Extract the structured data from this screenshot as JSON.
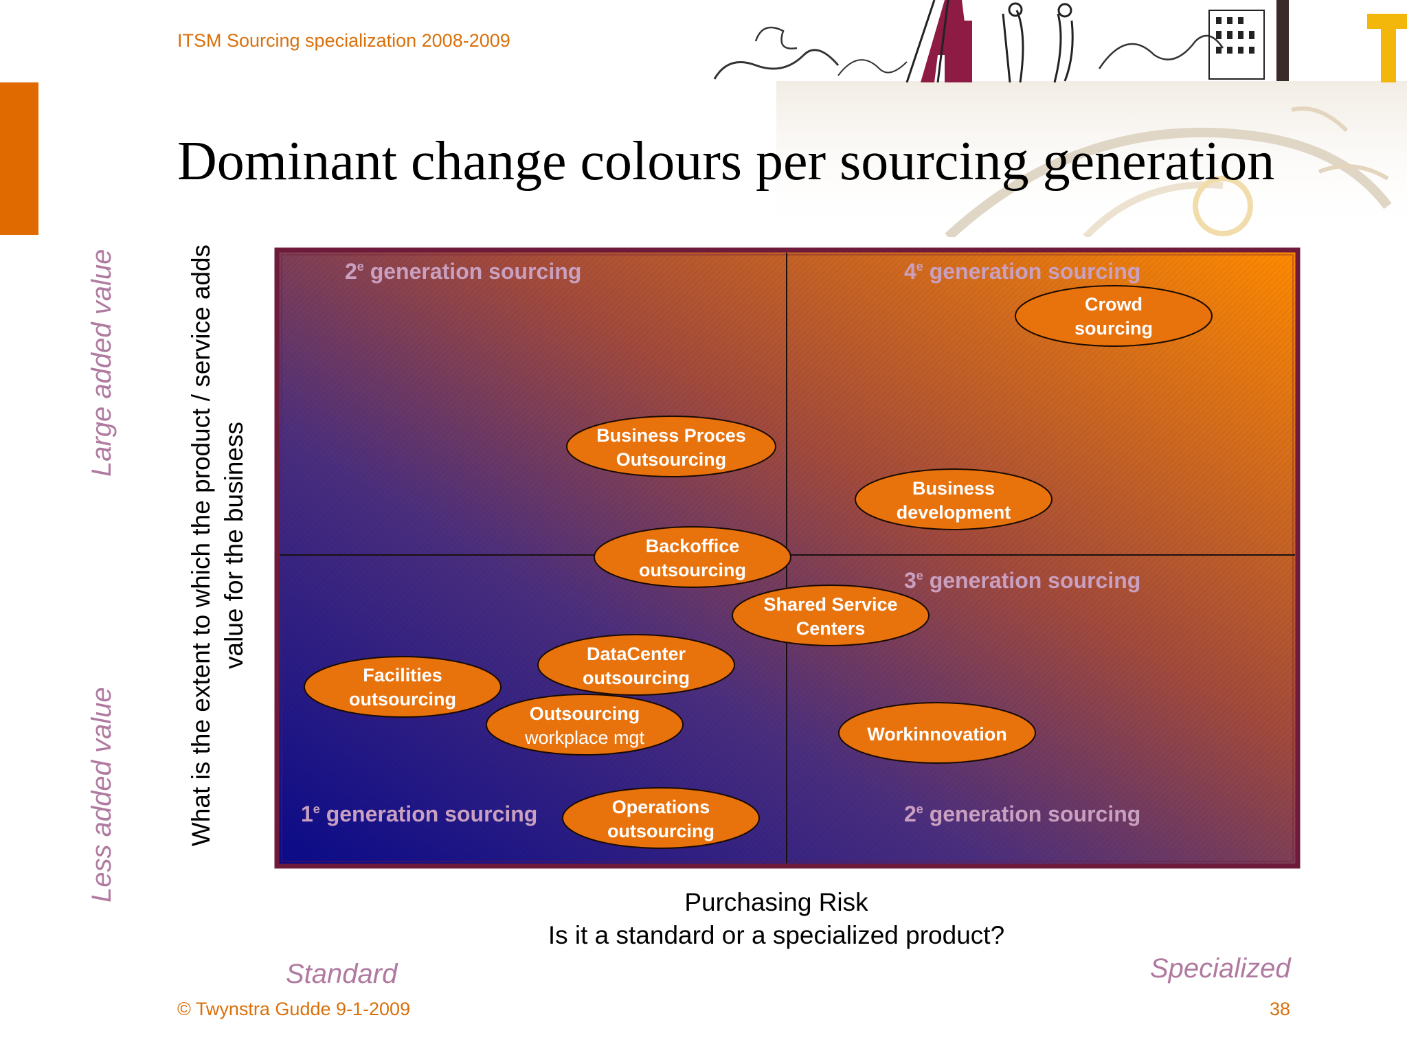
{
  "header": {
    "course_title": "ITSM Sourcing specialization 2008-2009"
  },
  "slide": {
    "title": "Dominant change colours per sourcing generation"
  },
  "colors": {
    "accent_orange": "#E06A00",
    "footer_orange": "#D9700A",
    "axis_label_mauve": "#B07AA0",
    "quadrant_label": "#C9A0C0",
    "ellipse_fill": "#E8720C",
    "frame": "#6E1A3A",
    "gradient_dark": "#0A0A8A",
    "gradient_bright": "#FF8A00"
  },
  "diagram": {
    "y_axis_title_line1": "What is the extent to which the product / service adds",
    "y_axis_title_line2": "value for the business",
    "y_high_label": "Large added value",
    "y_low_label": "Less added value",
    "x_axis_title_line1": "Purchasing Risk",
    "x_axis_title_line2": "Is it a standard or a specialized product?",
    "x_low_label": "Standard",
    "x_high_label": "Specialized",
    "quadrants": [
      {
        "number": "2",
        "sup": "e",
        "text": " generation sourcing"
      },
      {
        "number": "4",
        "sup": "e",
        "text": " generation sourcing"
      },
      {
        "number": "3",
        "sup": "e",
        "text": " generation sourcing"
      },
      {
        "number": "1",
        "sup": "e",
        "text": " generation sourcing"
      },
      {
        "number": "2",
        "sup": "e",
        "text": " generation sourcing"
      }
    ],
    "items": [
      {
        "name": "crowd-sourcing",
        "line1": "Crowd",
        "line2": "sourcing"
      },
      {
        "name": "business-process-outsourcing",
        "line1": "Business Proces",
        "line2": "Outsourcing"
      },
      {
        "name": "business-development",
        "line1": "Business",
        "line2": "development"
      },
      {
        "name": "backoffice-outsourcing",
        "line1": "Backoffice",
        "line2": "outsourcing"
      },
      {
        "name": "shared-service-centers",
        "line1": "Shared Service",
        "line2": "Centers"
      },
      {
        "name": "datacenter-outsourcing",
        "line1": "DataCenter",
        "line2": "outsourcing"
      },
      {
        "name": "facilities-outsourcing",
        "line1": "Facilities",
        "line2": "outsourcing"
      },
      {
        "name": "outsourcing-workplace-mgt",
        "line1": "Outsourcing",
        "line2": "workplace mgt"
      },
      {
        "name": "workinnovation",
        "line1": "Workinnovation",
        "line2": ""
      },
      {
        "name": "operations-outsourcing",
        "line1": "Operations",
        "line2": "outsourcing"
      }
    ]
  },
  "footer": {
    "copyright": "© Twynstra Gudde  9-1-2009",
    "page_number": "38"
  }
}
